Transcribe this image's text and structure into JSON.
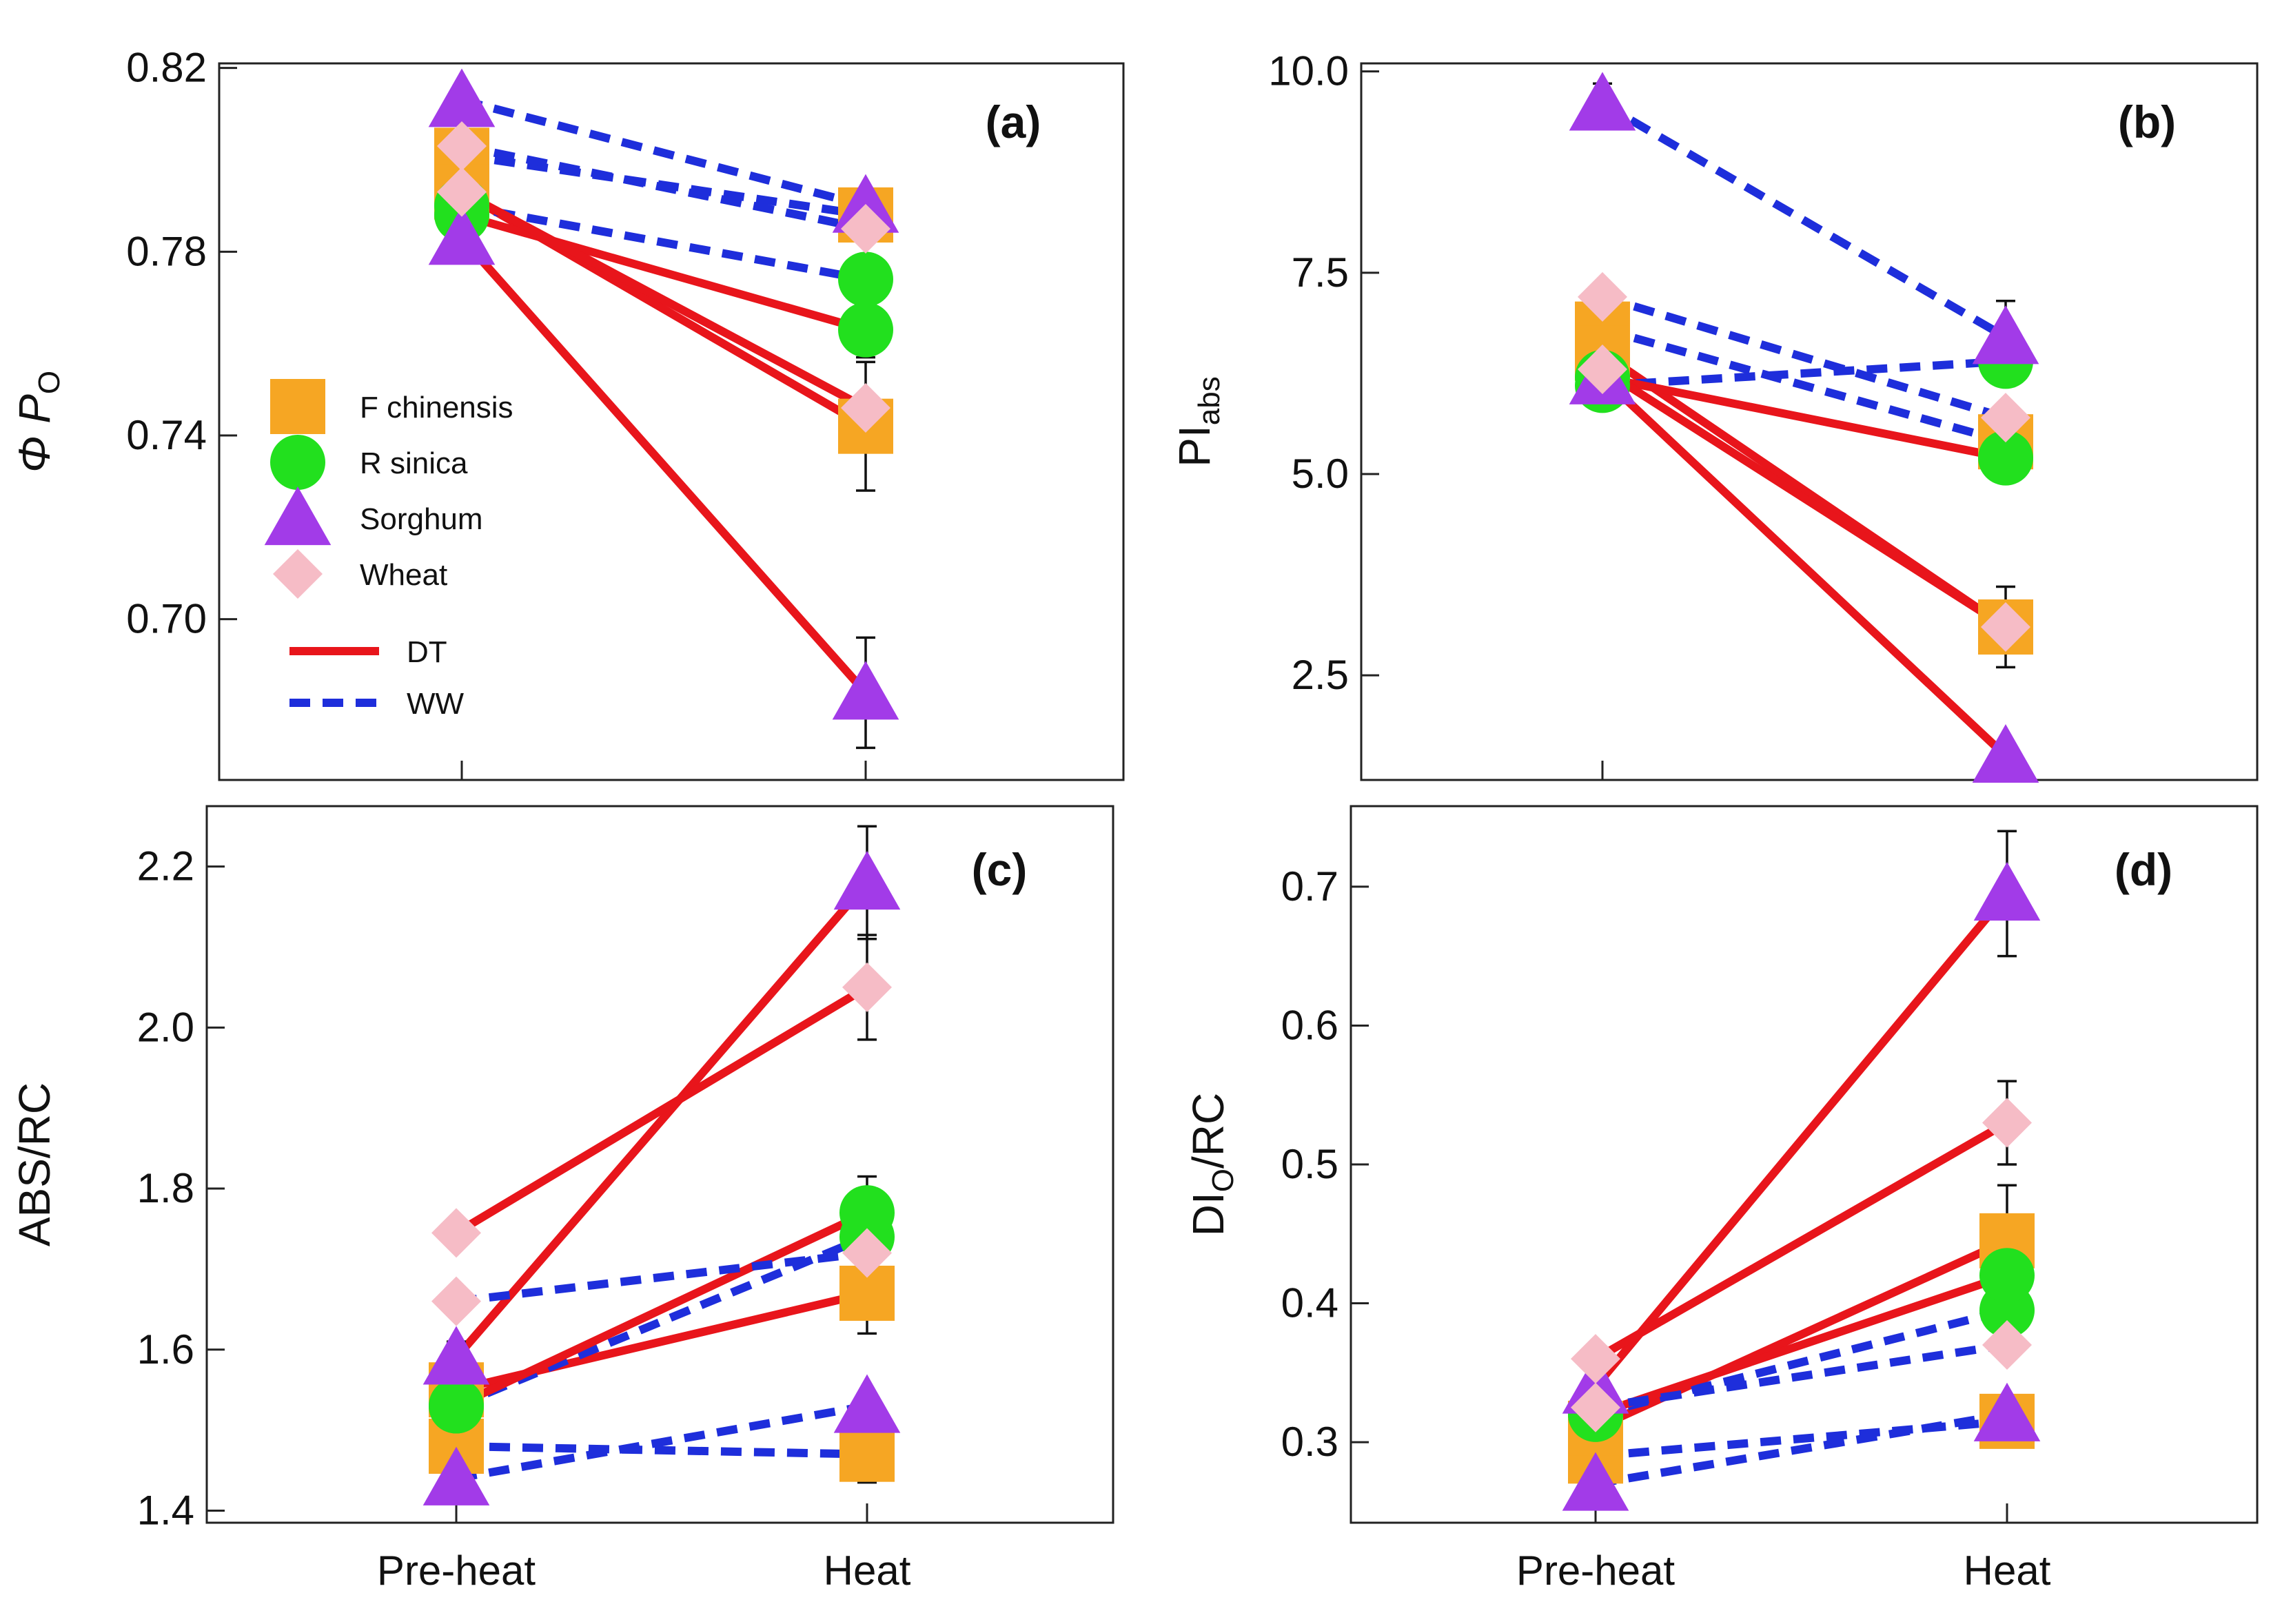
{
  "figure": {
    "x_categories": [
      "Pre-heat",
      "Heat"
    ],
    "legend": {
      "species": [
        {
          "name": "F chinensis",
          "color": "#F6A623",
          "marker": "square"
        },
        {
          "name": "R sinica",
          "color": "#22E01E",
          "marker": "circle"
        },
        {
          "name": "Sorghum",
          "color": "#A23BE8",
          "marker": "triangle"
        },
        {
          "name": "Wheat",
          "color": "#F6BCC6",
          "marker": "diamond"
        }
      ],
      "treatments": [
        {
          "name": "DT",
          "color": "#E8151B",
          "style": "solid"
        },
        {
          "name": "WW",
          "color": "#1E2EDB",
          "style": "dashed"
        }
      ]
    }
  },
  "chart_data": [
    {
      "type": "line",
      "panel_label": "(a)",
      "ylabel_main": "Φ P",
      "ylabel_sub": "O",
      "categories": [
        "Pre-heat",
        "Heat"
      ],
      "ylim": [
        0.665,
        0.821
      ],
      "yticks": [
        "0.82",
        "0.78",
        "0.74",
        "0.70"
      ],
      "ytick_values": [
        0.82,
        0.78,
        0.74,
        0.7
      ],
      "series": [
        {
          "species": "F chinensis",
          "treatment": "WW",
          "values": [
            0.801,
            0.788
          ],
          "err": [
            0,
            0
          ]
        },
        {
          "species": "F chinensis",
          "treatment": "DT",
          "values": [
            0.793,
            0.742
          ],
          "err": [
            0,
            0.014
          ]
        },
        {
          "species": "R sinica",
          "treatment": "WW",
          "values": [
            0.79,
            0.774
          ],
          "err": [
            0,
            0
          ]
        },
        {
          "species": "R sinica",
          "treatment": "DT",
          "values": [
            0.788,
            0.763
          ],
          "err": [
            0,
            0.006
          ]
        },
        {
          "species": "Sorghum",
          "treatment": "WW",
          "values": [
            0.813,
            0.79
          ],
          "err": [
            0,
            0
          ]
        },
        {
          "species": "Sorghum",
          "treatment": "DT",
          "values": [
            0.783,
            0.684
          ],
          "err": [
            0.005,
            0.012
          ]
        },
        {
          "species": "Wheat",
          "treatment": "WW",
          "values": [
            0.803,
            0.785
          ],
          "err": [
            0,
            0
          ]
        },
        {
          "species": "Wheat",
          "treatment": "DT",
          "values": [
            0.793,
            0.746
          ],
          "err": [
            0,
            0
          ]
        }
      ]
    },
    {
      "type": "line",
      "panel_label": "(b)",
      "ylabel_main": "PI",
      "ylabel_sub": "abs",
      "categories": [
        "Pre-heat",
        "Heat"
      ],
      "ylim": [
        1.2,
        10.1
      ],
      "yticks": [
        "10.0",
        "7.5",
        "5.0",
        "2.5"
      ],
      "ytick_values": [
        10.0,
        7.5,
        5.0,
        2.5
      ],
      "series": [
        {
          "species": "F chinensis",
          "treatment": "WW",
          "values": [
            6.8,
            5.4
          ],
          "err": [
            0,
            0
          ]
        },
        {
          "species": "F chinensis",
          "treatment": "DT",
          "values": [
            6.5,
            3.1
          ],
          "err": [
            0,
            0.5
          ]
        },
        {
          "species": "R sinica",
          "treatment": "WW",
          "values": [
            6.1,
            6.4
          ],
          "err": [
            0,
            0
          ]
        },
        {
          "species": "R sinica",
          "treatment": "DT",
          "values": [
            6.2,
            5.2
          ],
          "err": [
            0,
            0.3
          ]
        },
        {
          "species": "Sorghum",
          "treatment": "WW",
          "values": [
            9.6,
            6.7
          ],
          "err": [
            0.25,
            0.45
          ]
        },
        {
          "species": "Sorghum",
          "treatment": "DT",
          "values": [
            6.2,
            1.5
          ],
          "err": [
            0,
            0
          ]
        },
        {
          "species": "Wheat",
          "treatment": "WW",
          "values": [
            7.2,
            5.7
          ],
          "err": [
            0,
            0
          ]
        },
        {
          "species": "Wheat",
          "treatment": "DT",
          "values": [
            6.3,
            3.1
          ],
          "err": [
            0,
            0
          ]
        }
      ]
    },
    {
      "type": "line",
      "panel_label": "(c)",
      "ylabel_main": "ABS/RC",
      "ylabel_sub": "",
      "categories": [
        "Pre-heat",
        "Heat"
      ],
      "ylim": [
        1.385,
        2.275
      ],
      "yticks": [
        "2.2",
        "2.0",
        "1.8",
        "1.6",
        "1.4"
      ],
      "ytick_values": [
        2.2,
        2.0,
        1.8,
        1.6,
        1.4
      ],
      "series": [
        {
          "species": "F chinensis",
          "treatment": "WW",
          "values": [
            1.48,
            1.47
          ],
          "err": [
            0,
            0.035
          ]
        },
        {
          "species": "F chinensis",
          "treatment": "DT",
          "values": [
            1.55,
            1.67
          ],
          "err": [
            0,
            0.05
          ]
        },
        {
          "species": "R sinica",
          "treatment": "WW",
          "values": [
            1.53,
            1.74
          ],
          "err": [
            0,
            0
          ]
        },
        {
          "species": "R sinica",
          "treatment": "DT",
          "values": [
            1.53,
            1.77
          ],
          "err": [
            0,
            0.045
          ]
        },
        {
          "species": "Sorghum",
          "treatment": "WW",
          "values": [
            1.44,
            1.53
          ],
          "err": [
            0,
            0
          ]
        },
        {
          "species": "Sorghum",
          "treatment": "DT",
          "values": [
            1.59,
            2.18
          ],
          "err": [
            0.02,
            0.07
          ]
        },
        {
          "species": "Wheat",
          "treatment": "WW",
          "values": [
            1.66,
            1.72
          ],
          "err": [
            0,
            0
          ]
        },
        {
          "species": "Wheat",
          "treatment": "DT",
          "values": [
            1.745,
            2.05
          ],
          "err": [
            0,
            0.065
          ]
        }
      ]
    },
    {
      "type": "line",
      "panel_label": "(d)",
      "ylabel_main": "DI",
      "ylabel_sub": "O",
      "ylabel_tail": "/RC",
      "categories": [
        "Pre-heat",
        "Heat"
      ],
      "ylim": [
        0.242,
        0.758
      ],
      "yticks": [
        "0.7",
        "0.6",
        "0.5",
        "0.4",
        "0.3"
      ],
      "ytick_values": [
        0.7,
        0.6,
        0.5,
        0.4,
        0.3
      ],
      "series": [
        {
          "species": "F chinensis",
          "treatment": "WW",
          "values": [
            0.29,
            0.315
          ],
          "err": [
            0,
            0.015
          ]
        },
        {
          "species": "F chinensis",
          "treatment": "DT",
          "values": [
            0.31,
            0.445
          ],
          "err": [
            0,
            0.04
          ]
        },
        {
          "species": "R sinica",
          "treatment": "WW",
          "values": [
            0.32,
            0.395
          ],
          "err": [
            0,
            0
          ]
        },
        {
          "species": "R sinica",
          "treatment": "DT",
          "values": [
            0.32,
            0.42
          ],
          "err": [
            0,
            0
          ]
        },
        {
          "species": "Sorghum",
          "treatment": "WW",
          "values": [
            0.27,
            0.32
          ],
          "err": [
            0,
            0
          ]
        },
        {
          "species": "Sorghum",
          "treatment": "DT",
          "values": [
            0.34,
            0.695
          ],
          "err": [
            0,
            0.045
          ]
        },
        {
          "species": "Wheat",
          "treatment": "WW",
          "values": [
            0.325,
            0.37
          ],
          "err": [
            0,
            0
          ]
        },
        {
          "species": "Wheat",
          "treatment": "DT",
          "values": [
            0.36,
            0.53
          ],
          "err": [
            0,
            0.03
          ]
        }
      ]
    }
  ]
}
